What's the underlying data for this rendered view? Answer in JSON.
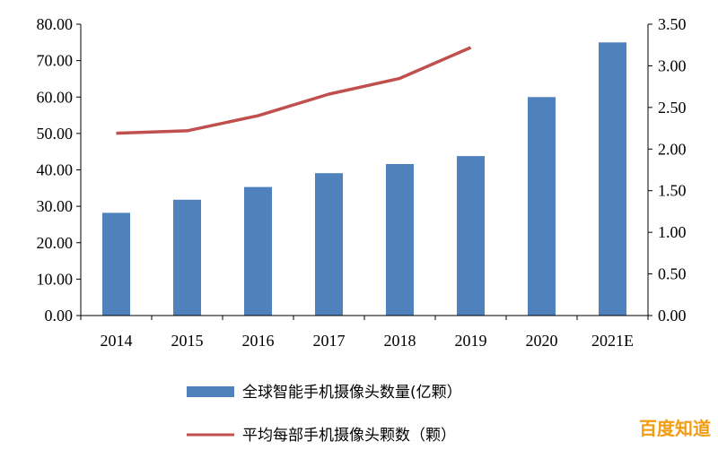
{
  "chart_data": {
    "type": "bar",
    "categories": [
      "2014",
      "2015",
      "2016",
      "2017",
      "2018",
      "2019",
      "2020",
      "2021E"
    ],
    "series": [
      {
        "name": "全球智能手机摄像头数量(亿颗）",
        "type": "bar",
        "axis": "left",
        "color": "#4f81bd",
        "values": [
          28.2,
          31.8,
          35.3,
          39.1,
          41.6,
          43.8,
          60.0,
          75.0
        ]
      },
      {
        "name": "平均每部手机摄像头颗数（颗）",
        "type": "line",
        "axis": "right",
        "color": "#c0504d",
        "values": [
          2.19,
          2.22,
          2.4,
          2.66,
          2.85,
          3.22,
          null,
          null
        ]
      }
    ],
    "y_left": {
      "min": 0,
      "max": 80,
      "ticks": [
        "0.00",
        "10.00",
        "20.00",
        "30.00",
        "40.00",
        "50.00",
        "60.00",
        "70.00",
        "80.00"
      ]
    },
    "y_right": {
      "min": 0,
      "max": 3.5,
      "ticks": [
        "0.00",
        "0.50",
        "1.00",
        "1.50",
        "2.00",
        "2.50",
        "3.00",
        "3.50"
      ]
    },
    "grid": false,
    "legend_position": "bottom"
  },
  "watermark": {
    "text": "百度知道",
    "color": "#f39c12"
  }
}
